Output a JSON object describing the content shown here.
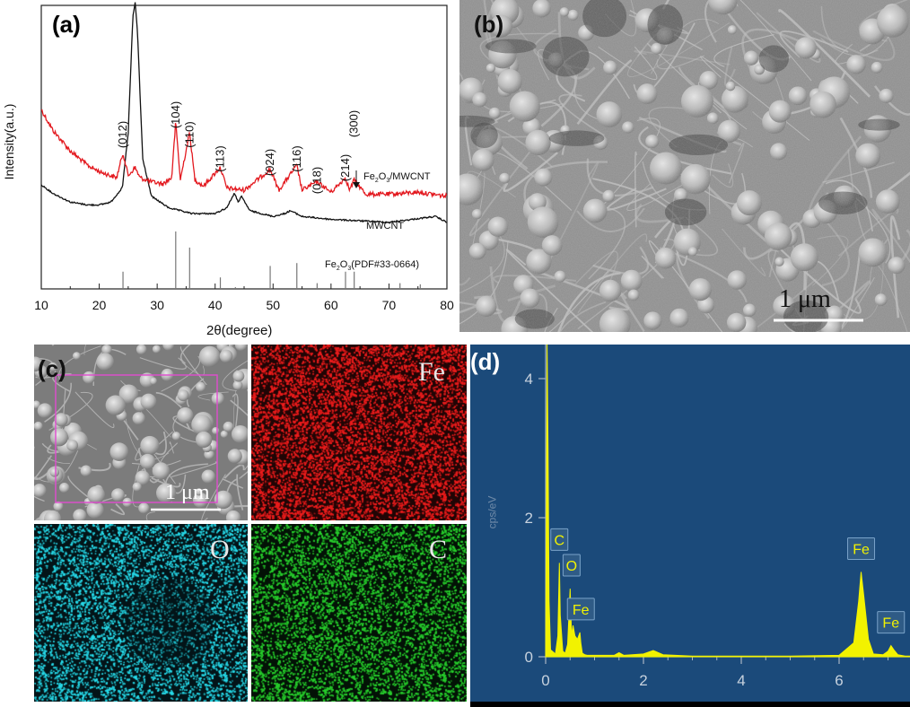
{
  "panel_a": {
    "label": "(a)",
    "ylabel": "Intensity(a.u.)",
    "xlabel": "2θ(degree)",
    "xticks": [
      "10",
      "20",
      "30",
      "40",
      "50",
      "60",
      "70",
      "80"
    ],
    "series_labels": {
      "fe2o3_pre": "Fe",
      "fe2o3_sub1": "2",
      "fe2o3_mid": "O",
      "fe2o3_sub2": "3",
      "fe2o3_post": "/MWCNT",
      "mwcnt": "MWCNT",
      "pdf_pre": "Fe",
      "pdf_sub1": "2",
      "pdf_mid": "O",
      "pdf_sub2": "3",
      "pdf_post": "(PDF#33-0664)"
    },
    "peak_labels": [
      {
        "text": "(012)",
        "x": 24.1
      },
      {
        "text": "(104)",
        "x": 33.2
      },
      {
        "text": "(110)",
        "x": 35.6
      },
      {
        "text": "(113)",
        "x": 40.9
      },
      {
        "text": "(024)",
        "x": 49.5
      },
      {
        "text": "(116)",
        "x": 54.1
      },
      {
        "text": "(018)",
        "x": 57.6
      },
      {
        "text": "(214)",
        "x": 62.5
      },
      {
        "text": "(300)",
        "x": 64.0
      }
    ]
  },
  "chart_data": [
    {
      "type": "line",
      "xlabel": "2θ(degree)",
      "ylabel": "Intensity(a.u.)",
      "xlim": [
        10,
        80
      ],
      "series": [
        {
          "name": "Fe2O3/MWCNT",
          "color": "#e3191f",
          "x": [
            10,
            12,
            15,
            18,
            20,
            22,
            23,
            24.1,
            25,
            26.2,
            27,
            29,
            31,
            32.5,
            33.2,
            34,
            35.6,
            36.5,
            38,
            40.9,
            42,
            45,
            49.5,
            51,
            54.1,
            55,
            57.6,
            60,
            62.5,
            63.2,
            64,
            66,
            70,
            75,
            80
          ],
          "y": [
            0.86,
            0.76,
            0.66,
            0.59,
            0.56,
            0.54,
            0.53,
            0.65,
            0.54,
            0.58,
            0.53,
            0.51,
            0.5,
            0.53,
            0.8,
            0.52,
            0.75,
            0.52,
            0.49,
            0.58,
            0.48,
            0.47,
            0.57,
            0.47,
            0.59,
            0.47,
            0.51,
            0.46,
            0.53,
            0.47,
            0.52,
            0.45,
            0.45,
            0.46,
            0.44
          ]
        },
        {
          "name": "MWCNT",
          "color": "#111111",
          "x": [
            10,
            12,
            15,
            18,
            20,
            22,
            24,
            25,
            25.8,
            26.2,
            26.6,
            27.5,
            29,
            32,
            36,
            40,
            42,
            43.3,
            44,
            44.5,
            46,
            50,
            52,
            53,
            55,
            60,
            70,
            78,
            80
          ],
          "y": [
            0.37,
            0.34,
            0.31,
            0.3,
            0.3,
            0.31,
            0.36,
            0.55,
            0.95,
            1.0,
            0.9,
            0.46,
            0.33,
            0.29,
            0.27,
            0.27,
            0.29,
            0.34,
            0.31,
            0.33,
            0.28,
            0.26,
            0.27,
            0.28,
            0.26,
            0.25,
            0.24,
            0.26,
            0.24
          ]
        }
      ],
      "reference": {
        "name": "Fe2O3(PDF#33-0664)",
        "x": [
          24.1,
          33.2,
          35.6,
          40.9,
          43.5,
          49.5,
          54.1,
          57.6,
          62.5,
          64.0,
          71.9,
          75.4
        ],
        "h": [
          0.3,
          1.0,
          0.72,
          0.2,
          0.03,
          0.4,
          0.45,
          0.1,
          0.3,
          0.3,
          0.1,
          0.08
        ]
      }
    },
    {
      "type": "line",
      "title": "",
      "xlabel": "",
      "ylabel": "cps/eV",
      "xlim": [
        -0.3,
        7.6
      ],
      "ylim": [
        0,
        4.5
      ],
      "xticks": [
        0,
        2,
        4,
        6
      ],
      "yticks": [
        0,
        2,
        4
      ],
      "series": [
        {
          "name": "EDS spectrum",
          "color": "#f2f200",
          "x": [
            0,
            0.03,
            0.05,
            0.07,
            0.1,
            0.2,
            0.25,
            0.28,
            0.3,
            0.35,
            0.4,
            0.45,
            0.5,
            0.53,
            0.56,
            0.6,
            0.65,
            0.7,
            0.72,
            0.75,
            0.8,
            0.85,
            1.0,
            1.4,
            1.5,
            1.6,
            2.0,
            2.2,
            2.4,
            3.0,
            4.0,
            5.0,
            6.0,
            6.3,
            6.4,
            6.45,
            6.5,
            6.6,
            6.7,
            6.9,
            7.0,
            7.06,
            7.12,
            7.2,
            7.35,
            7.5
          ],
          "y": [
            0,
            4.5,
            3.0,
            0.8,
            0.1,
            0.04,
            0.3,
            1.35,
            0.6,
            0.08,
            0.05,
            0.18,
            0.98,
            0.3,
            0.45,
            0.3,
            0.25,
            0.35,
            0.2,
            0.05,
            0.03,
            0.02,
            0.02,
            0.02,
            0.06,
            0.02,
            0.04,
            0.09,
            0.03,
            0.01,
            0.01,
            0.01,
            0.02,
            0.2,
            0.8,
            1.22,
            0.9,
            0.25,
            0.04,
            0.03,
            0.08,
            0.16,
            0.1,
            0.03,
            0.01,
            0.01
          ]
        }
      ],
      "annotations": [
        "C",
        "O",
        "Fe",
        "Fe",
        "Fe"
      ]
    }
  ],
  "panel_b": {
    "label": "(b)",
    "scale_bar": "1 μm"
  },
  "panel_c": {
    "label": "(c)",
    "scale_bar": "1 μm",
    "maps": [
      "Fe",
      "O",
      "C"
    ]
  },
  "panel_d": {
    "label": "(d)",
    "ylabel": "cps/eV",
    "xticks": [
      "0",
      "2",
      "4",
      "6"
    ],
    "yticks": [
      "0",
      "2",
      "4"
    ],
    "peaks": [
      {
        "text": "C",
        "x": 0.28,
        "y": 1.35
      },
      {
        "text": "O",
        "x": 0.53,
        "y": 0.98
      },
      {
        "text": "Fe",
        "x": 0.72,
        "y": 0.35
      },
      {
        "text": "Fe",
        "x": 6.45,
        "y": 1.22
      },
      {
        "text": "Fe",
        "x": 7.06,
        "y": 0.16
      }
    ]
  },
  "colors": {
    "fe2o3_curve": "#e3191f",
    "mwcnt_curve": "#111111",
    "eds_bg": "#1b4a7a",
    "eds_curve": "#f2f200",
    "map_fe": "#ff2020",
    "map_o": "#1fe0f0",
    "map_c": "#22d02a"
  }
}
